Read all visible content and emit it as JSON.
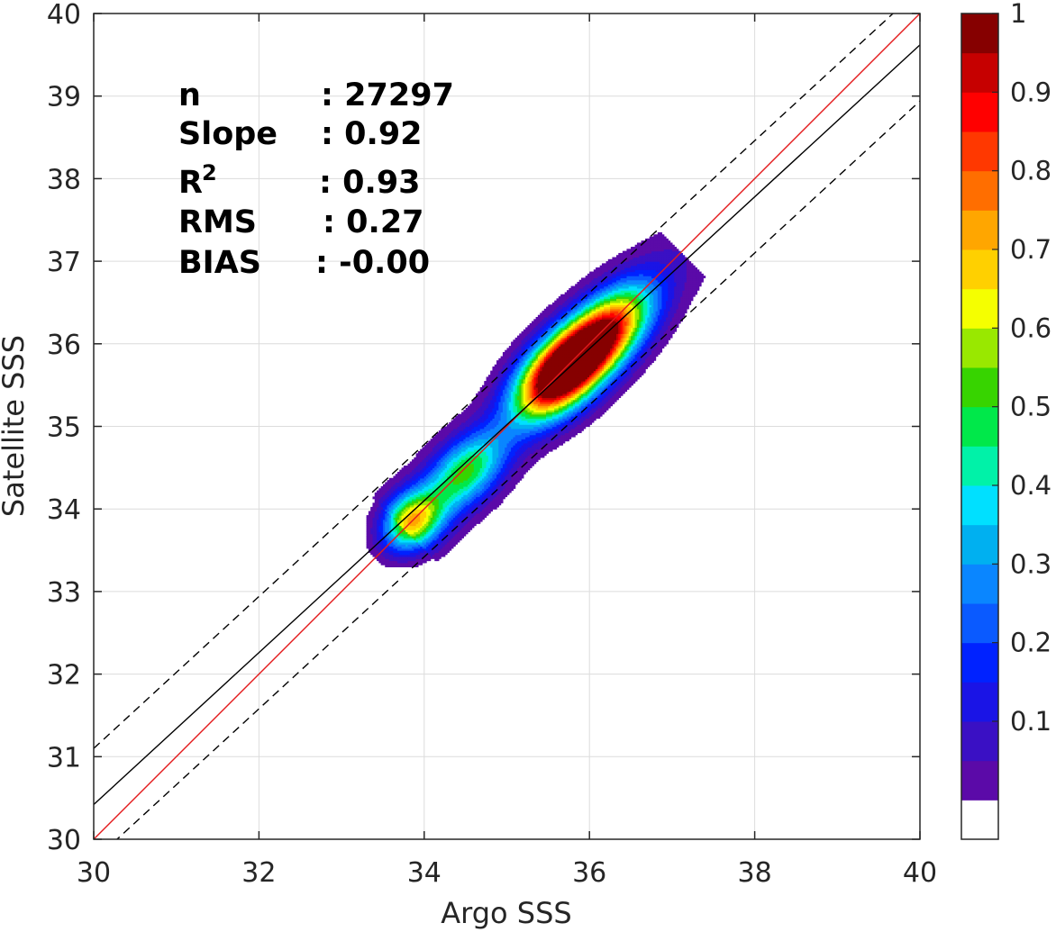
{
  "chart_data": {
    "type": "scatter",
    "subtype": "filled-contour density",
    "xlabel": "Argo SSS",
    "ylabel": "Satellite SSS",
    "xlim": [
      30,
      40
    ],
    "ylim": [
      30,
      40
    ],
    "xticks": [
      "30",
      "32",
      "34",
      "36",
      "38",
      "40"
    ],
    "yticks": [
      "30",
      "31",
      "32",
      "33",
      "34",
      "35",
      "36",
      "37",
      "38",
      "39",
      "40"
    ],
    "grid": true,
    "stats": [
      {
        "key": "n",
        "sep": ": 27297"
      },
      {
        "key": "Slope",
        "sep": ": 0.92"
      },
      {
        "key": "R",
        "sup": "2",
        "sep": ": 0.93"
      },
      {
        "key": "RMS",
        "sep": ": 0.27"
      },
      {
        "key": "BIAS",
        "sep": ": -0.00"
      }
    ],
    "lines": [
      {
        "role": "one-to-one",
        "color": "#e41a1c",
        "style": "solid",
        "points": [
          [
            30,
            30
          ],
          [
            40,
            40
          ]
        ]
      },
      {
        "role": "fit",
        "color": "#000000",
        "style": "solid",
        "points": [
          [
            30,
            30.42
          ],
          [
            40,
            39.62
          ]
        ]
      },
      {
        "role": "fit-upper",
        "color": "#000000",
        "style": "dashed",
        "points": [
          [
            30,
            31.1
          ],
          [
            40,
            40.3
          ]
        ]
      },
      {
        "role": "fit-lower",
        "color": "#000000",
        "style": "dashed",
        "points": [
          [
            30,
            29.74
          ],
          [
            40,
            38.94
          ]
        ]
      }
    ],
    "density_peaks": [
      {
        "x": 33.85,
        "y": 33.85,
        "value": 0.65
      },
      {
        "x": 34.5,
        "y": 34.45,
        "value": 0.5
      },
      {
        "x": 35.6,
        "y": 35.6,
        "value": 0.88
      },
      {
        "x": 36.1,
        "y": 36.05,
        "value": 1.0
      }
    ],
    "colorbar": {
      "range": [
        0,
        1
      ],
      "ticks": [
        "0.1",
        "0.2",
        "0.3",
        "0.4",
        "0.5",
        "0.6",
        "0.7",
        "0.8",
        "0.9",
        "1"
      ],
      "tick_values": [
        0.1,
        0.2,
        0.3,
        0.4,
        0.5,
        0.6,
        0.7,
        0.8,
        0.9,
        1.0
      ],
      "levels": [
        "#ffffff",
        "#5b0aa8",
        "#3a10c4",
        "#1a14e6",
        "#0022ff",
        "#0a5aff",
        "#0a86ff",
        "#00b0f0",
        "#00e0ff",
        "#00f2a8",
        "#00e84a",
        "#37d400",
        "#99e800",
        "#f5ff00",
        "#ffd000",
        "#ffa600",
        "#ff6e00",
        "#ff3800",
        "#ff0000",
        "#c60000",
        "#860000"
      ]
    }
  }
}
